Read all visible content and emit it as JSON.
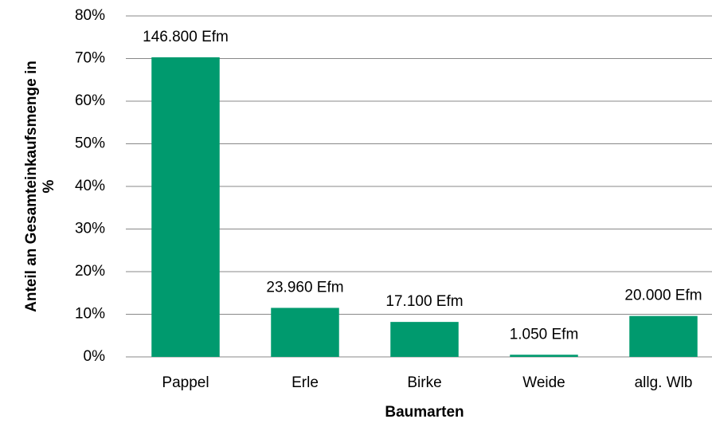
{
  "chart_data": {
    "type": "bar",
    "xlabel": "Baumarten",
    "ylabel": [
      "Anteil an Gesamteinkaufsmenge in",
      "%"
    ],
    "categories": [
      "Pappel",
      "Erle",
      "Birke",
      "Weide",
      "allg. Wlb"
    ],
    "values": [
      70.3,
      11.5,
      8.2,
      0.5,
      9.6
    ],
    "data_labels": [
      "146.800 Efm",
      "23.960 Efm",
      "17.100 Efm",
      "1.050 Efm",
      "20.000 Efm"
    ],
    "color": "#009a6e",
    "ylim": [
      0,
      80
    ],
    "yticks": [
      {
        "value": 0,
        "label": "0%"
      },
      {
        "value": 10,
        "label": "10%"
      },
      {
        "value": 20,
        "label": "20%"
      },
      {
        "value": 30,
        "label": "30%"
      },
      {
        "value": 40,
        "label": "40%"
      },
      {
        "value": 50,
        "label": "50%"
      },
      {
        "value": 60,
        "label": "60%"
      },
      {
        "value": 70,
        "label": "70%"
      },
      {
        "value": 80,
        "label": "80%"
      }
    ],
    "grid": true
  }
}
